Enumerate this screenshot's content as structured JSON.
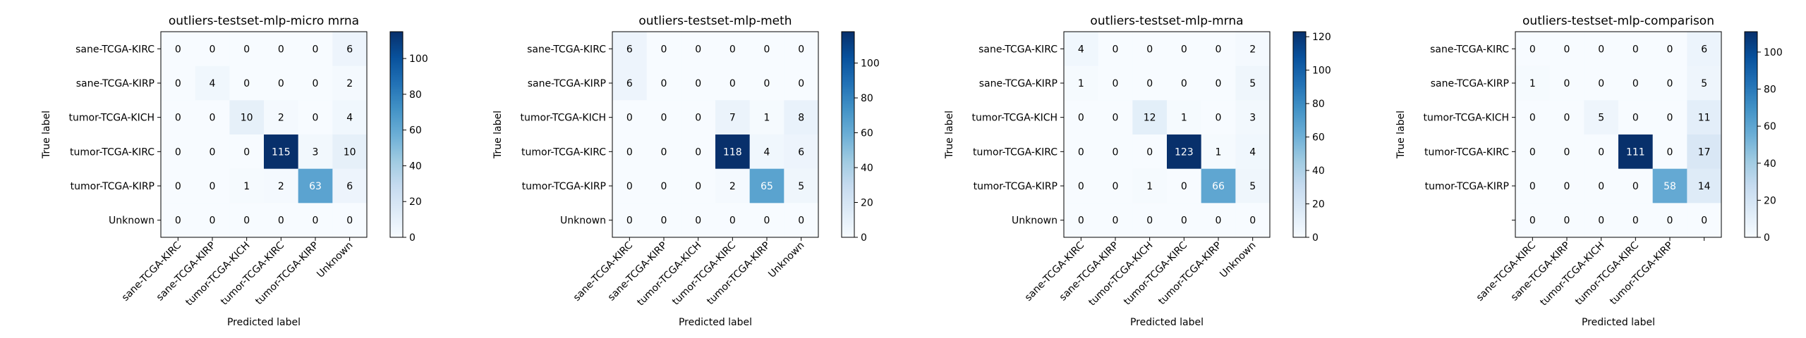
{
  "chart_data": [
    {
      "type": "heatmap",
      "title": "outliers-testset-mlp-micro mrna",
      "xlabel": "Predicted label",
      "ylabel": "True label",
      "row_labels": [
        "sane-TCGA-KIRC",
        "sane-TCGA-KIRP",
        "tumor-TCGA-KICH",
        "tumor-TCGA-KIRC",
        "tumor-TCGA-KIRP",
        "Unknown"
      ],
      "col_labels": [
        "sane-TCGA-KIRC",
        "sane-TCGA-KIRP",
        "tumor-TCGA-KICH",
        "tumor-TCGA-KIRC",
        "tumor-TCGA-KIRP",
        "Unknown"
      ],
      "values": [
        [
          0,
          0,
          0,
          0,
          0,
          6
        ],
        [
          0,
          4,
          0,
          0,
          0,
          2
        ],
        [
          0,
          0,
          10,
          2,
          0,
          4
        ],
        [
          0,
          0,
          0,
          115,
          3,
          10
        ],
        [
          0,
          0,
          1,
          2,
          63,
          6
        ],
        [
          0,
          0,
          0,
          0,
          0,
          0
        ]
      ],
      "colorbar": {
        "min": 0,
        "max": 115,
        "ticks": [
          0,
          20,
          40,
          60,
          80,
          100
        ]
      }
    },
    {
      "type": "heatmap",
      "title": "outliers-testset-mlp-meth",
      "xlabel": "Predicted label",
      "ylabel": "True label",
      "row_labels": [
        "sane-TCGA-KIRC",
        "sane-TCGA-KIRP",
        "tumor-TCGA-KICH",
        "tumor-TCGA-KIRC",
        "tumor-TCGA-KIRP",
        "Unknown"
      ],
      "col_labels": [
        "sane-TCGA-KIRC",
        "sane-TCGA-KIRP",
        "tumor-TCGA-KICH",
        "tumor-TCGA-KIRC",
        "tumor-TCGA-KIRP",
        "Unknown"
      ],
      "values": [
        [
          6,
          0,
          0,
          0,
          0,
          0
        ],
        [
          6,
          0,
          0,
          0,
          0,
          0
        ],
        [
          0,
          0,
          0,
          7,
          1,
          8
        ],
        [
          0,
          0,
          0,
          118,
          4,
          6
        ],
        [
          0,
          0,
          0,
          2,
          65,
          5
        ],
        [
          0,
          0,
          0,
          0,
          0,
          0
        ]
      ],
      "colorbar": {
        "min": 0,
        "max": 118,
        "ticks": [
          0,
          20,
          40,
          60,
          80,
          100
        ]
      }
    },
    {
      "type": "heatmap",
      "title": "outliers-testset-mlp-mrna",
      "xlabel": "Predicted label",
      "ylabel": "True label",
      "row_labels": [
        "sane-TCGA-KIRC",
        "sane-TCGA-KIRP",
        "tumor-TCGA-KICH",
        "tumor-TCGA-KIRC",
        "tumor-TCGA-KIRP",
        "Unknown"
      ],
      "col_labels": [
        "sane-TCGA-KIRC",
        "sane-TCGA-KIRP",
        "tumor-TCGA-KICH",
        "tumor-TCGA-KIRC",
        "tumor-TCGA-KIRP",
        "Unknown"
      ],
      "values": [
        [
          4,
          0,
          0,
          0,
          0,
          2
        ],
        [
          1,
          0,
          0,
          0,
          0,
          5
        ],
        [
          0,
          0,
          12,
          1,
          0,
          3
        ],
        [
          0,
          0,
          0,
          123,
          1,
          4
        ],
        [
          0,
          0,
          1,
          0,
          66,
          5
        ],
        [
          0,
          0,
          0,
          0,
          0,
          0
        ]
      ],
      "colorbar": {
        "min": 0,
        "max": 123,
        "ticks": [
          0,
          20,
          40,
          60,
          80,
          100,
          120
        ]
      }
    },
    {
      "type": "heatmap",
      "title": "outliers-testset-mlp-comparison",
      "xlabel": "Predicted label",
      "ylabel": "True label",
      "row_labels": [
        "sane-TCGA-KIRC",
        "sane-TCGA-KIRP",
        "tumor-TCGA-KICH",
        "tumor-TCGA-KIRC",
        "tumor-TCGA-KIRP",
        ""
      ],
      "col_labels": [
        "sane-TCGA-KIRC",
        "sane-TCGA-KIRP",
        "tumor-TCGA-KICH",
        "tumor-TCGA-KIRC",
        "tumor-TCGA-KIRP",
        ""
      ],
      "values": [
        [
          0,
          0,
          0,
          0,
          0,
          6
        ],
        [
          1,
          0,
          0,
          0,
          0,
          5
        ],
        [
          0,
          0,
          5,
          0,
          0,
          11
        ],
        [
          0,
          0,
          0,
          111,
          0,
          17
        ],
        [
          0,
          0,
          0,
          0,
          58,
          14
        ],
        [
          0,
          0,
          0,
          0,
          0,
          0
        ]
      ],
      "colorbar": {
        "min": 0,
        "max": 111,
        "ticks": [
          0,
          20,
          40,
          60,
          80,
          100
        ]
      }
    }
  ]
}
